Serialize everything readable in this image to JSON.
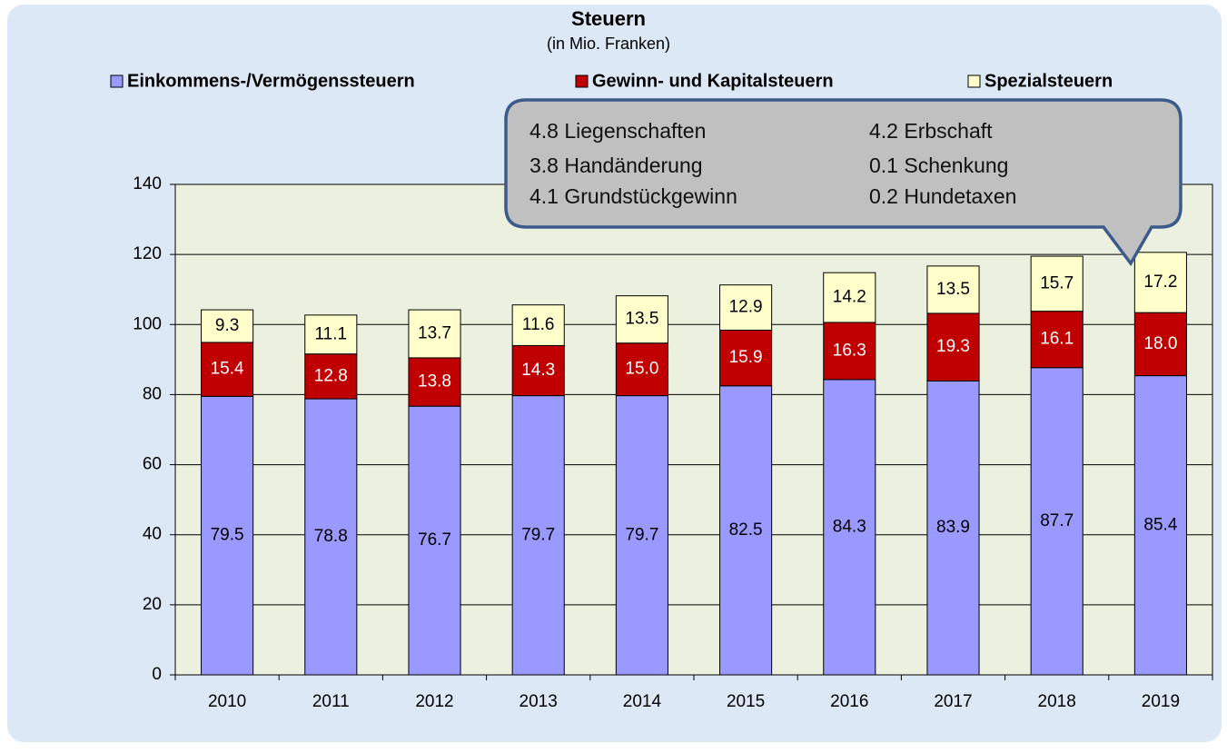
{
  "chart_data": {
    "type": "bar",
    "stacked": true,
    "title": "Steuern",
    "subtitle": "(in Mio. Franken)",
    "categories": [
      "2010",
      "2011",
      "2012",
      "2013",
      "2014",
      "2015",
      "2016",
      "2017",
      "2018",
      "2019"
    ],
    "series": [
      {
        "name": "Einkommens-/Vermögenssteuern",
        "color": "#9999ff",
        "label_color": "#000000",
        "values": [
          79.5,
          78.8,
          76.7,
          79.7,
          79.7,
          82.5,
          84.3,
          83.9,
          87.7,
          85.4
        ],
        "value_labels": [
          "79.5",
          "78.8",
          "76.7",
          "79.7",
          "79.7",
          "82.5",
          "84.3",
          "83.9",
          "87.7",
          "85.4"
        ]
      },
      {
        "name": "Gewinn- und Kapitalsteuern",
        "color": "#c00000",
        "label_color": "#ffffff",
        "values": [
          15.4,
          12.8,
          13.8,
          14.3,
          15.0,
          15.9,
          16.3,
          19.3,
          16.1,
          18.0
        ],
        "value_labels": [
          "15.4",
          "12.8",
          "13.8",
          "14.3",
          "15.0",
          "15.9",
          "16.3",
          "19.3",
          "16.1",
          "18.0"
        ]
      },
      {
        "name": "Spezialsteuern",
        "color": "#ffffcc",
        "label_color": "#000000",
        "values": [
          9.3,
          11.1,
          13.7,
          11.6,
          13.5,
          12.9,
          14.2,
          13.5,
          15.7,
          17.2
        ],
        "value_labels": [
          "9.3",
          "11.1",
          "13.7",
          "11.6",
          "13.5",
          "12.9",
          "14.2",
          "13.5",
          "15.7",
          "17.2"
        ]
      }
    ],
    "ylim": [
      0,
      140
    ],
    "yticks": [
      0,
      20,
      40,
      60,
      80,
      100,
      120,
      140
    ],
    "grid": true,
    "legend": "top",
    "annotation": [
      [
        "4.8 Liegenschaften",
        "4.2 Erbschaft"
      ],
      [
        "3.8 Handänderung",
        "0.1 Schenkung"
      ],
      [
        "4.1 Grundstückgewinn",
        "0.2 Hundetaxen"
      ]
    ]
  }
}
